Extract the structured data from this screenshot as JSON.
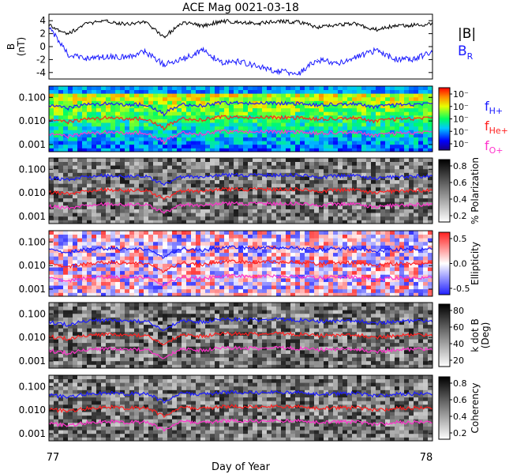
{
  "title": "ACE Mag 0021-03-18",
  "xlabel": "Day of Year",
  "x_ticks": [
    "77",
    "78"
  ],
  "chart_data": [
    {
      "type": "line",
      "panel": "magnetic-field",
      "ylabel": "B\n(nT)",
      "ylim": [
        -5,
        5
      ],
      "y_ticks": [
        4,
        2,
        0,
        -2,
        -4
      ],
      "series": [
        {
          "name": "|B|",
          "color": "#000000",
          "x": [
            77.0,
            77.05,
            77.1,
            77.15,
            77.2,
            77.25,
            77.3,
            77.35,
            77.4,
            77.45,
            77.5,
            77.55,
            77.6,
            77.65,
            77.7,
            77.75,
            77.8,
            77.85,
            77.9,
            77.95,
            78.0
          ],
          "values": [
            3.3,
            2.0,
            3.6,
            3.9,
            3.5,
            3.8,
            1.5,
            3.8,
            3.2,
            3.9,
            3.8,
            3.6,
            3.9,
            3.8,
            3.0,
            3.4,
            3.5,
            2.6,
            3.2,
            3.3,
            3.5
          ]
        },
        {
          "name": "B_R",
          "color": "#1a1aff",
          "x": [
            77.0,
            77.05,
            77.1,
            77.15,
            77.2,
            77.25,
            77.3,
            77.35,
            77.4,
            77.45,
            77.5,
            77.55,
            77.6,
            77.65,
            77.7,
            77.75,
            77.8,
            77.85,
            77.9,
            77.95,
            78.0
          ],
          "values": [
            3.2,
            -1.3,
            -1.8,
            -1.6,
            -1.6,
            -0.8,
            -2.8,
            -2.0,
            -0.5,
            -2.5,
            -2.3,
            -3.2,
            -3.8,
            -4.2,
            -2.0,
            -2.6,
            -1.7,
            -0.6,
            -1.9,
            -2.0,
            -0.8
          ]
        }
      ]
    },
    {
      "type": "heatmap",
      "panel": "power-spectrum",
      "colormap": "rainbow",
      "yscale": "log",
      "ylim": [
        0.0005,
        0.3
      ],
      "y_ticks": [
        "0.100",
        "0.010",
        "0.001"
      ],
      "colorbar_ticks": [
        "10⁻",
        "10⁻",
        "10⁻",
        "10⁻",
        "10⁻"
      ],
      "legend": [
        {
          "label": "f",
          "sub": "H+",
          "color": "#1a1aff"
        },
        {
          "label": "f",
          "sub": "He+",
          "color": "#ff2020"
        },
        {
          "label": "f",
          "sub": "O+",
          "color": "#ff33cc"
        }
      ]
    },
    {
      "type": "heatmap",
      "panel": "polarization",
      "colormap": "gray",
      "yscale": "log",
      "ylim": [
        0.0005,
        0.3
      ],
      "y_ticks": [
        "0.100",
        "0.010",
        "0.001"
      ],
      "colorbar_label": "% Polarization",
      "colorbar_ticks": [
        "0.8",
        "0.6",
        "0.4",
        "0.2"
      ]
    },
    {
      "type": "heatmap",
      "panel": "ellipticity",
      "colormap": "bwr",
      "yscale": "log",
      "ylim": [
        0.0005,
        0.3
      ],
      "y_ticks": [
        "0.100",
        "0.010",
        "0.001"
      ],
      "colorbar_label": "Ellipticity",
      "colorbar_ticks": [
        "0.5",
        "0.0",
        "-0.5"
      ]
    },
    {
      "type": "heatmap",
      "panel": "k-dot-b",
      "colormap": "gray",
      "yscale": "log",
      "ylim": [
        0.0005,
        0.3
      ],
      "y_ticks": [
        "0.100",
        "0.010",
        "0.001"
      ],
      "colorbar_label": "k dot B\n(Deg)",
      "colorbar_ticks": [
        "80",
        "60",
        "40",
        "20"
      ]
    },
    {
      "type": "heatmap",
      "panel": "coherency",
      "colormap": "gray",
      "yscale": "log",
      "ylim": [
        0.0005,
        0.3
      ],
      "y_ticks": [
        "0.100",
        "0.010",
        "0.001"
      ],
      "colorbar_label": "Coherency",
      "colorbar_ticks": [
        "0.8",
        "0.6",
        "0.4",
        "0.2"
      ]
    }
  ],
  "cyclotron_lines": {
    "x": [
      77.0,
      77.05,
      77.1,
      77.15,
      77.2,
      77.25,
      77.3,
      77.35,
      77.4,
      77.45,
      77.5,
      77.55,
      77.6,
      77.65,
      77.7,
      77.75,
      77.8,
      77.85,
      77.9,
      77.95,
      78.0
    ],
    "f_H": [
      0.045,
      0.035,
      0.05,
      0.055,
      0.048,
      0.052,
      0.02,
      0.052,
      0.046,
      0.058,
      0.058,
      0.056,
      0.058,
      0.056,
      0.047,
      0.052,
      0.053,
      0.04,
      0.048,
      0.05,
      0.052
    ],
    "f_He": [
      0.011,
      0.009,
      0.012,
      0.014,
      0.012,
      0.013,
      0.005,
      0.013,
      0.0115,
      0.0145,
      0.0145,
      0.014,
      0.0145,
      0.014,
      0.0118,
      0.013,
      0.0133,
      0.01,
      0.012,
      0.0125,
      0.013
    ],
    "f_O": [
      0.0028,
      0.0022,
      0.003,
      0.0034,
      0.003,
      0.0033,
      0.0013,
      0.0033,
      0.0029,
      0.0036,
      0.0036,
      0.0035,
      0.0036,
      0.0035,
      0.003,
      0.0033,
      0.0033,
      0.0025,
      0.003,
      0.0031,
      0.0033
    ]
  }
}
